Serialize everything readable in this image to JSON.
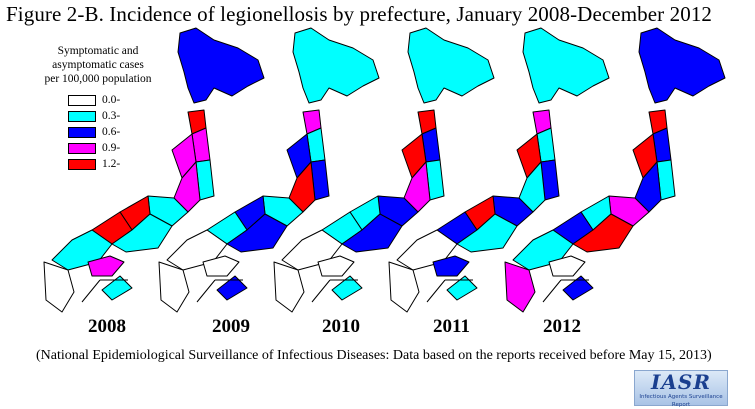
{
  "title": "Figure 2-B. Incidence of legionellosis by prefecture, January 2008-December 2012",
  "legend": {
    "title_lines": [
      "Symptomatic and",
      "asymptomatic cases",
      "per 100,000 population"
    ],
    "items": [
      {
        "label": "0.0-",
        "color": "#ffffff"
      },
      {
        "label": "0.3-",
        "color": "#00ffff"
      },
      {
        "label": "0.6-",
        "color": "#0000ff"
      },
      {
        "label": "0.9-",
        "color": "#ff00ff"
      },
      {
        "label": "1.2-",
        "color": "#ff0000"
      }
    ]
  },
  "maps": [
    {
      "year": "2008",
      "hokkaido": "#0000ff",
      "north": [
        "#ff0000",
        "#ff00ff",
        "#00ffff"
      ],
      "center": [
        "#ff00ff",
        "#ff00ff",
        "#00ffff",
        "#ff0000"
      ],
      "west": [
        "#ff0000",
        "#00ffff",
        "#00ffff"
      ],
      "south": [
        "#ffffff",
        "#ff00ff",
        "#00ffff"
      ]
    },
    {
      "year": "2009",
      "hokkaido": "#00ffff",
      "north": [
        "#ff00ff",
        "#00ffff",
        "#0000ff"
      ],
      "center": [
        "#0000ff",
        "#ff0000",
        "#00ffff",
        "#0000ff"
      ],
      "west": [
        "#00ffff",
        "#0000ff",
        "#ffffff"
      ],
      "south": [
        "#ffffff",
        "#ffffff",
        "#0000ff"
      ]
    },
    {
      "year": "2010",
      "hokkaido": "#00ffff",
      "north": [
        "#ff0000",
        "#0000ff",
        "#00ffff"
      ],
      "center": [
        "#ff0000",
        "#ff00ff",
        "#0000ff",
        "#00ffff"
      ],
      "west": [
        "#00ffff",
        "#0000ff",
        "#ffffff"
      ],
      "south": [
        "#ffffff",
        "#ffffff",
        "#00ffff"
      ]
    },
    {
      "year": "2011",
      "hokkaido": "#00ffff",
      "north": [
        "#ff00ff",
        "#00ffff",
        "#0000ff"
      ],
      "center": [
        "#ff0000",
        "#00ffff",
        "#0000ff",
        "#ff0000"
      ],
      "west": [
        "#0000ff",
        "#00ffff",
        "#ffffff"
      ],
      "south": [
        "#ffffff",
        "#0000ff",
        "#00ffff"
      ]
    },
    {
      "year": "2012",
      "hokkaido": "#0000ff",
      "north": [
        "#ff0000",
        "#0000ff",
        "#00ffff"
      ],
      "center": [
        "#ff0000",
        "#0000ff",
        "#ff00ff",
        "#00ffff"
      ],
      "west": [
        "#0000ff",
        "#ff0000",
        "#00ffff"
      ],
      "south": [
        "#ff00ff",
        "#ffffff",
        "#0000ff"
      ]
    }
  ],
  "caption": "(National Epidemiological Surveillance of Infectious Diseases: Data based on the reports received before May 15, 2013)",
  "logo": {
    "text": "IASR",
    "subtext": "Infectious Agents Surveillance Report"
  }
}
